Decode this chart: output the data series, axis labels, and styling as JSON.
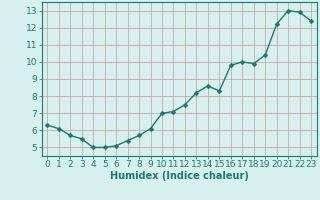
{
  "x": [
    0,
    1,
    2,
    3,
    4,
    5,
    6,
    7,
    8,
    9,
    10,
    11,
    12,
    13,
    14,
    15,
    16,
    17,
    18,
    19,
    20,
    21,
    22,
    23
  ],
  "y": [
    6.3,
    6.1,
    5.7,
    5.5,
    5.0,
    5.0,
    5.1,
    5.4,
    5.7,
    6.1,
    7.0,
    7.1,
    7.5,
    8.2,
    8.6,
    8.3,
    9.8,
    10.0,
    9.9,
    10.4,
    12.2,
    13.0,
    12.9,
    12.4
  ],
  "line_color": "#1a7a6e",
  "marker_color": "#1a7a6e",
  "bg_color": "#d6f0ee",
  "grid_color": "#cc9999",
  "xlabel": "Humidex (Indice chaleur)",
  "xlim": [
    -0.5,
    23.5
  ],
  "ylim": [
    4.5,
    13.5
  ],
  "yticks": [
    5,
    6,
    7,
    8,
    9,
    10,
    11,
    12,
    13
  ],
  "xticks": [
    0,
    1,
    2,
    3,
    4,
    5,
    6,
    7,
    8,
    9,
    10,
    11,
    12,
    13,
    14,
    15,
    16,
    17,
    18,
    19,
    20,
    21,
    22,
    23
  ],
  "xlabel_fontsize": 7,
  "tick_fontsize": 6.5,
  "axis_color": "#1a7a6e",
  "linewidth": 1.0,
  "markersize": 2.5
}
